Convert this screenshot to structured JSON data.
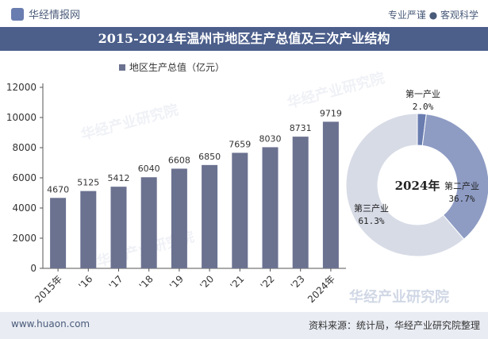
{
  "header": {
    "brand": "华经情报网",
    "tagline": "专业严谨 ● 客观科学"
  },
  "title": "2015-2024年温州市地区生产总值及三次产业结构",
  "legend_label": "地区生产总值（亿元）",
  "footer": {
    "url": "www.huaon.com",
    "source": "资料来源：统计局，华经产业研究院整理"
  },
  "watermark": "华经产业研究院",
  "colors": {
    "bar": "#6b7290",
    "donut": [
      "#6a7db0",
      "#8e9cc4",
      "#d7dbe6"
    ],
    "title_bg": "#4c5f8b"
  },
  "chart_data": [
    {
      "type": "bar",
      "categories": [
        "2015年",
        "'16",
        "'17",
        "'18",
        "'19",
        "'20",
        "'21",
        "'22",
        "'23",
        "2024年"
      ],
      "values": [
        4670,
        5125,
        5412,
        6040,
        6608,
        6850,
        7659,
        8030,
        8731,
        9719
      ],
      "series": [
        {
          "name": "地区生产总值（亿元）",
          "values": [
            4670,
            5125,
            5412,
            6040,
            6608,
            6850,
            7659,
            8030,
            8731,
            9719
          ]
        }
      ],
      "yticks": [
        0,
        2000,
        4000,
        6000,
        8000,
        10000,
        12000
      ],
      "ylim": [
        0,
        12000
      ],
      "grid": false,
      "legend": "top"
    },
    {
      "type": "pie",
      "center_label": "2024年",
      "slices": [
        {
          "name": "第一产业",
          "value": 2.0,
          "label": "2.0%"
        },
        {
          "name": "第二产业",
          "value": 36.7,
          "label": "36.7%"
        },
        {
          "name": "第三产业",
          "value": 61.3,
          "label": "61.3%"
        }
      ]
    }
  ]
}
